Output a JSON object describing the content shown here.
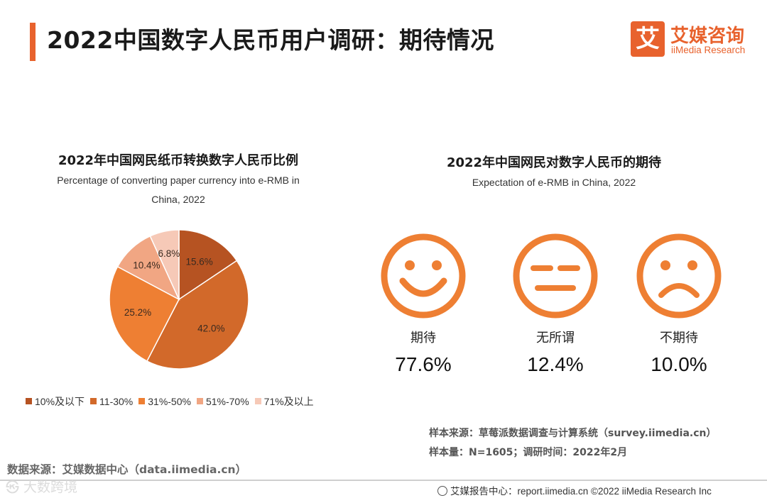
{
  "header": {
    "title": "2022中国数字人民币用户调研：期待情况",
    "logo_box": "艾",
    "logo_cn": "艾媒咨询",
    "logo_en": "iiMedia Research"
  },
  "chart_data": [
    {
      "type": "pie",
      "title": "2022年中国网民纸币转换数字人民币比例",
      "subtitle_line1": "Percentage of converting paper currency into e-RMB in",
      "subtitle_line2": "China, 2022",
      "categories": [
        "10%及以下",
        "11-30%",
        "31%-50%",
        "51%-70%",
        "71%及以上"
      ],
      "values": [
        15.6,
        42.0,
        25.2,
        10.4,
        6.8
      ],
      "labels": [
        "15.6%",
        "42.0%",
        "25.2%",
        "10.4%",
        "6.8%"
      ],
      "colors": [
        "#b65322",
        "#d2692a",
        "#ee7f33",
        "#f1a683",
        "#f6c9b7"
      ],
      "legend_position": "bottom"
    },
    {
      "type": "table",
      "title": "2022年中国网民对数字人民币的期待",
      "subtitle": "Expectation of e-RMB in China, 2022",
      "categories": [
        "期待",
        "无所谓",
        "不期待"
      ],
      "values": [
        77.6,
        12.4,
        10.0
      ],
      "value_labels": [
        "77.6%",
        "12.4%",
        "10.0%"
      ],
      "icons": [
        "smile-face-icon",
        "neutral-face-icon",
        "sad-face-icon"
      ]
    }
  ],
  "sources": {
    "sample_source": "样本来源：草莓派数据调查与计算系统（survey.iimedia.cn）",
    "sample_size": "样本量：N=1605；调研时间：2022年2月",
    "data_source": "数据来源：艾媒数据中心（data.iimedia.cn）"
  },
  "footer": {
    "text": "艾媒报告中心：report.iimedia.cn   ©2022 iiMedia Research Inc",
    "watermark": "㉿ 大数跨境"
  },
  "colors": {
    "accent": "#e8622d",
    "face": "#ee7f33"
  }
}
